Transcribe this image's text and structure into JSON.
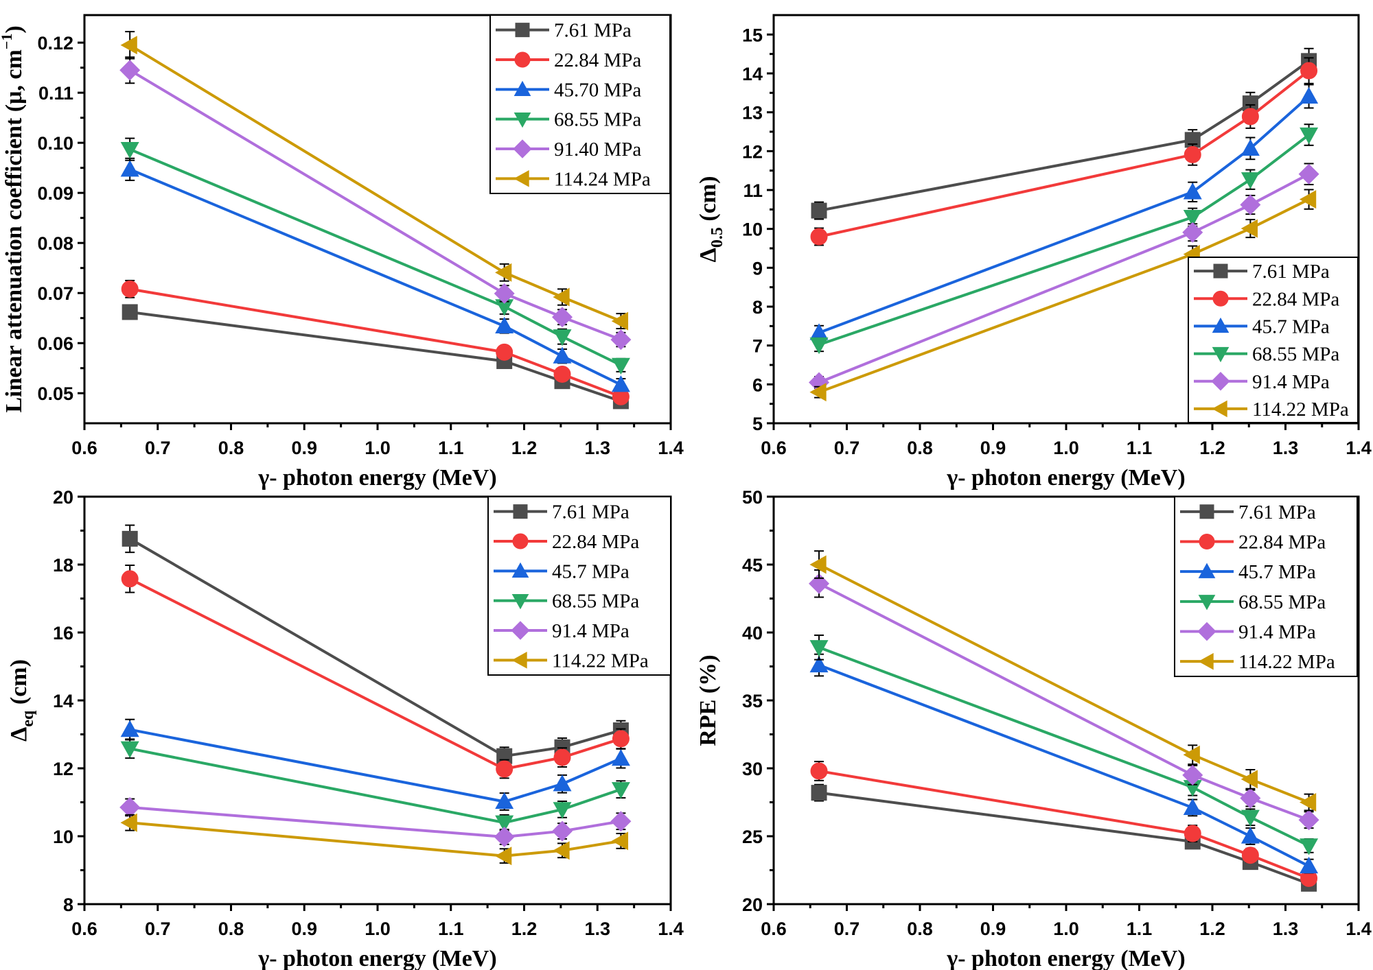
{
  "figure": {
    "series_styles": [
      {
        "name": "7.61 MPa",
        "color": "#4d4d4d",
        "marker": "square"
      },
      {
        "name": "22.84 MPa",
        "color": "#f23a3a",
        "marker": "circle"
      },
      {
        "name": "45.70 MPa",
        "color": "#1a64dc",
        "marker": "triangle-up"
      },
      {
        "name": "68.55 MPa",
        "color": "#2aa865",
        "marker": "triangle-down"
      },
      {
        "name": "91.40 MPa",
        "color": "#b06fdc",
        "marker": "diamond"
      },
      {
        "name": "114.24 MPa",
        "color": "#cc9a06",
        "marker": "triangle-left"
      }
    ]
  },
  "chart_data": [
    {
      "type": "line",
      "panel": "top-left",
      "title": "",
      "xlabel": "γ- photon energy (MeV)",
      "ylabel": "Linear attenuation coefficient (μ, cm",
      "ylabel_sup": "−1",
      "ylabel_tail": ")",
      "xlim": [
        0.6,
        1.4
      ],
      "ylim": [
        0.044,
        0.1255
      ],
      "xticks": [
        0.6,
        0.7,
        0.8,
        0.9,
        1.0,
        1.1,
        1.2,
        1.3,
        1.4
      ],
      "xtick_labels": [
        "0.6",
        "0.7",
        "0.8",
        "0.9",
        "1.0",
        "1.1",
        "1.2",
        "1.3",
        "1.4"
      ],
      "yticks": [
        0.05,
        0.06,
        0.07,
        0.08,
        0.09,
        0.1,
        0.11,
        0.12
      ],
      "ytick_labels": [
        "0.05",
        "0.06",
        "0.07",
        "0.08",
        "0.09",
        "0.10",
        "0.11",
        "0.12"
      ],
      "grid": false,
      "legend_position": "top-right",
      "x": [
        0.662,
        1.173,
        1.252,
        1.332
      ],
      "series": [
        {
          "name": "7.61 MPa",
          "values": [
            0.0662,
            0.0564,
            0.0524,
            0.0484
          ],
          "errors": [
            0.0012,
            0.001,
            0.001,
            0.001
          ]
        },
        {
          "name": "22.84 MPa",
          "values": [
            0.0708,
            0.0582,
            0.0538,
            0.0493
          ],
          "errors": [
            0.0017,
            0.0012,
            0.0012,
            0.001
          ]
        },
        {
          "name": "45.70 MPa",
          "values": [
            0.0947,
            0.0634,
            0.0574,
            0.0517
          ],
          "errors": [
            0.0022,
            0.0014,
            0.0014,
            0.0012
          ]
        },
        {
          "name": "68.55 MPa",
          "values": [
            0.0987,
            0.0673,
            0.0613,
            0.0556
          ],
          "errors": [
            0.0022,
            0.0015,
            0.0015,
            0.0013
          ]
        },
        {
          "name": "91.40 MPa",
          "values": [
            0.1145,
            0.0699,
            0.0652,
            0.0607
          ],
          "errors": [
            0.0026,
            0.0016,
            0.0015,
            0.0014
          ]
        },
        {
          "name": "114.24 MPa",
          "values": [
            0.1195,
            0.0741,
            0.0692,
            0.0644
          ],
          "errors": [
            0.0027,
            0.0017,
            0.0016,
            0.0015
          ]
        }
      ]
    },
    {
      "type": "line",
      "panel": "top-right",
      "title": "",
      "xlabel": "γ- photon energy (MeV)",
      "ylabel": "Δ",
      "ylabel_sub": "0.5",
      "ylabel_tail": " (cm)",
      "xlim": [
        0.6,
        1.4
      ],
      "ylim": [
        5,
        15.5
      ],
      "xticks": [
        0.6,
        0.7,
        0.8,
        0.9,
        1.0,
        1.1,
        1.2,
        1.3,
        1.4
      ],
      "xtick_labels": [
        "0.6",
        "0.7",
        "0.8",
        "0.9",
        "1.0",
        "1.1",
        "1.2",
        "1.3",
        "1.4"
      ],
      "yticks": [
        5,
        6,
        7,
        8,
        9,
        10,
        11,
        12,
        13,
        14,
        15
      ],
      "ytick_labels": [
        "5",
        "6",
        "7",
        "8",
        "9",
        "10",
        "11",
        "12",
        "13",
        "14",
        "15"
      ],
      "grid": false,
      "legend_position": "bottom-right",
      "x": [
        0.662,
        1.173,
        1.252,
        1.332
      ],
      "series": [
        {
          "name": "7.61 MPa",
          "values": [
            10.47,
            12.29,
            13.23,
            14.32
          ],
          "errors": [
            0.22,
            0.26,
            0.28,
            0.32
          ]
        },
        {
          "name": "22.84 MPa",
          "values": [
            9.8,
            11.91,
            12.89,
            14.07
          ],
          "errors": [
            0.22,
            0.27,
            0.3,
            0.33
          ]
        },
        {
          "name": "45.7 MPa",
          "values": [
            7.33,
            10.95,
            12.07,
            13.41
          ],
          "errors": [
            0.18,
            0.25,
            0.28,
            0.3
          ]
        },
        {
          "name": "68.55 MPa",
          "values": [
            7.02,
            10.3,
            11.27,
            12.42
          ],
          "errors": [
            0.17,
            0.23,
            0.25,
            0.27
          ]
        },
        {
          "name": "91.4 MPa",
          "values": [
            6.05,
            9.91,
            10.62,
            11.41
          ],
          "errors": [
            0.15,
            0.22,
            0.24,
            0.27
          ]
        },
        {
          "name": "114.22 MPa",
          "values": [
            5.8,
            9.35,
            10.01,
            10.76
          ],
          "errors": [
            0.14,
            0.21,
            0.23,
            0.25
          ]
        }
      ]
    },
    {
      "type": "line",
      "panel": "bottom-left",
      "title": "",
      "xlabel": "γ- photon energy (MeV)",
      "ylabel": "Δ",
      "ylabel_sub": "eq",
      "ylabel_tail": " (cm)",
      "xlim": [
        0.6,
        1.4
      ],
      "ylim": [
        8,
        20
      ],
      "xticks": [
        0.6,
        0.7,
        0.8,
        0.9,
        1.0,
        1.1,
        1.2,
        1.3,
        1.4
      ],
      "xtick_labels": [
        "0.6",
        "0.7",
        "0.8",
        "0.9",
        "1.0",
        "1.1",
        "1.2",
        "1.3",
        "1.4"
      ],
      "yticks": [
        8,
        10,
        12,
        14,
        16,
        18,
        20
      ],
      "ytick_labels": [
        "8",
        "10",
        "12",
        "14",
        "16",
        "18",
        "20"
      ],
      "grid": false,
      "legend_position": "top-right",
      "x": [
        0.662,
        1.173,
        1.252,
        1.332
      ],
      "series": [
        {
          "name": "7.61 MPa",
          "values": [
            18.76,
            12.36,
            12.62,
            13.12
          ],
          "errors": [
            0.4,
            0.26,
            0.27,
            0.28
          ]
        },
        {
          "name": "22.84 MPa",
          "values": [
            17.58,
            11.98,
            12.32,
            12.87
          ],
          "errors": [
            0.4,
            0.27,
            0.28,
            0.29
          ]
        },
        {
          "name": "45.7 MPa",
          "values": [
            13.14,
            11.02,
            11.54,
            12.29
          ],
          "errors": [
            0.3,
            0.25,
            0.26,
            0.28
          ]
        },
        {
          "name": "68.55 MPa",
          "values": [
            12.58,
            10.4,
            10.79,
            11.38
          ],
          "errors": [
            0.28,
            0.23,
            0.24,
            0.25
          ]
        },
        {
          "name": "91.4 MPa",
          "values": [
            10.85,
            9.98,
            10.15,
            10.44
          ],
          "errors": [
            0.25,
            0.22,
            0.23,
            0.24
          ]
        },
        {
          "name": "114.22 MPa",
          "values": [
            10.4,
            9.42,
            9.58,
            9.86
          ],
          "errors": [
            0.23,
            0.21,
            0.21,
            0.22
          ]
        }
      ]
    },
    {
      "type": "line",
      "panel": "bottom-right",
      "title": "",
      "xlabel": "γ- photon energy (MeV)",
      "ylabel": "RPE (%)",
      "xlim": [
        0.6,
        1.4
      ],
      "ylim": [
        20,
        50
      ],
      "xticks": [
        0.6,
        0.7,
        0.8,
        0.9,
        1.0,
        1.1,
        1.2,
        1.3,
        1.4
      ],
      "xtick_labels": [
        "0.6",
        "0.7",
        "0.8",
        "0.9",
        "1.0",
        "1.1",
        "1.2",
        "1.3",
        "1.4"
      ],
      "yticks": [
        20,
        25,
        30,
        35,
        40,
        45,
        50
      ],
      "ytick_labels": [
        "20",
        "25",
        "30",
        "35",
        "40",
        "45",
        "50"
      ],
      "grid": false,
      "legend_position": "top-right",
      "x": [
        0.662,
        1.173,
        1.252,
        1.332
      ],
      "series": [
        {
          "name": "7.61 MPa",
          "values": [
            28.2,
            24.6,
            23.1,
            21.5
          ],
          "errors": [
            0.6,
            0.5,
            0.5,
            0.4
          ]
        },
        {
          "name": "22.84 MPa",
          "values": [
            29.8,
            25.2,
            23.6,
            21.9
          ],
          "errors": [
            0.7,
            0.6,
            0.5,
            0.5
          ]
        },
        {
          "name": "45.7 MPa",
          "values": [
            37.6,
            27.1,
            25.0,
            22.8
          ],
          "errors": [
            0.8,
            0.6,
            0.6,
            0.5
          ]
        },
        {
          "name": "68.55 MPa",
          "values": [
            38.9,
            28.6,
            26.4,
            24.3
          ],
          "errors": [
            0.9,
            0.6,
            0.6,
            0.5
          ]
        },
        {
          "name": "91.4 MPa",
          "values": [
            43.6,
            29.5,
            27.8,
            26.2
          ],
          "errors": [
            1.0,
            0.7,
            0.6,
            0.6
          ]
        },
        {
          "name": "114.22 MPa",
          "values": [
            45.0,
            31.0,
            29.2,
            27.5
          ],
          "errors": [
            1.0,
            0.7,
            0.7,
            0.6
          ]
        }
      ]
    }
  ]
}
